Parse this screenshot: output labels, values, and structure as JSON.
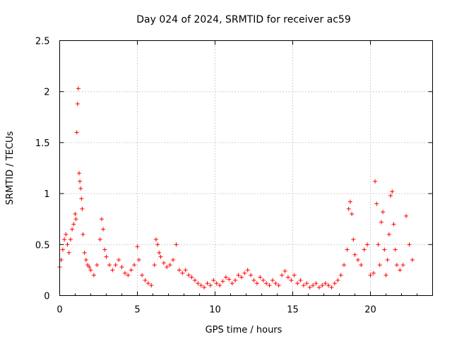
{
  "chart_data": {
    "type": "scatter",
    "title": "Day 024 of 2024, SRMTID for receiver ac59",
    "xlabel": "GPS time / hours",
    "ylabel": "SRMTID / TECUs",
    "xlim": [
      0,
      24
    ],
    "ylim": [
      0,
      2.5
    ],
    "xticks": [
      0,
      5,
      10,
      15,
      20
    ],
    "xtick_labels": [
      "0",
      "5",
      "10",
      "15",
      "20"
    ],
    "yticks": [
      0,
      0.5,
      1,
      1.5,
      2,
      2.5
    ],
    "ytick_labels": [
      "0",
      "0.5",
      "1",
      "1.5",
      "2",
      "2.5"
    ],
    "grid": true,
    "marker": "+",
    "color": "#ff0000",
    "series": [
      {
        "name": "SRMTID",
        "x": [
          0.0,
          0.1,
          0.2,
          0.3,
          0.4,
          0.5,
          0.6,
          0.7,
          0.8,
          0.9,
          1.0,
          1.05,
          1.1,
          1.15,
          1.2,
          1.25,
          1.3,
          1.35,
          1.4,
          1.45,
          1.5,
          1.6,
          1.7,
          1.8,
          1.9,
          2.0,
          2.2,
          2.4,
          2.6,
          2.7,
          2.8,
          2.9,
          3.0,
          3.2,
          3.4,
          3.6,
          3.8,
          4.0,
          4.2,
          4.4,
          4.6,
          4.8,
          5.0,
          5.1,
          5.3,
          5.5,
          5.7,
          5.9,
          6.1,
          6.2,
          6.3,
          6.4,
          6.5,
          6.7,
          6.9,
          7.1,
          7.3,
          7.5,
          7.7,
          7.9,
          8.1,
          8.3,
          8.5,
          8.7,
          8.9,
          9.1,
          9.3,
          9.5,
          9.7,
          9.9,
          10.1,
          10.3,
          10.5,
          10.7,
          10.9,
          11.1,
          11.3,
          11.5,
          11.7,
          11.9,
          12.1,
          12.3,
          12.5,
          12.7,
          12.9,
          13.1,
          13.3,
          13.5,
          13.7,
          13.9,
          14.1,
          14.3,
          14.5,
          14.7,
          14.9,
          15.1,
          15.3,
          15.5,
          15.7,
          15.9,
          16.1,
          16.3,
          16.5,
          16.7,
          16.9,
          17.1,
          17.3,
          17.5,
          17.7,
          17.9,
          18.1,
          18.3,
          18.5,
          18.6,
          18.7,
          18.8,
          18.9,
          19.0,
          19.2,
          19.4,
          19.6,
          19.8,
          20.0,
          20.2,
          20.3,
          20.4,
          20.5,
          20.6,
          20.7,
          20.8,
          20.9,
          21.0,
          21.1,
          21.2,
          21.3,
          21.4,
          21.5,
          21.6,
          21.7,
          21.9,
          22.1,
          22.3,
          22.5,
          22.7
        ],
        "y": [
          0.28,
          0.35,
          0.45,
          0.55,
          0.6,
          0.5,
          0.42,
          0.55,
          0.65,
          0.7,
          0.8,
          0.75,
          1.6,
          1.88,
          2.03,
          1.2,
          1.12,
          1.05,
          0.95,
          0.85,
          0.6,
          0.42,
          0.35,
          0.3,
          0.28,
          0.25,
          0.2,
          0.3,
          0.55,
          0.75,
          0.65,
          0.45,
          0.38,
          0.3,
          0.25,
          0.3,
          0.35,
          0.28,
          0.22,
          0.2,
          0.25,
          0.3,
          0.48,
          0.35,
          0.2,
          0.15,
          0.12,
          0.1,
          0.3,
          0.55,
          0.5,
          0.42,
          0.38,
          0.32,
          0.28,
          0.3,
          0.35,
          0.5,
          0.25,
          0.22,
          0.25,
          0.2,
          0.18,
          0.15,
          0.12,
          0.1,
          0.08,
          0.12,
          0.1,
          0.15,
          0.12,
          0.1,
          0.14,
          0.18,
          0.16,
          0.12,
          0.15,
          0.2,
          0.18,
          0.22,
          0.25,
          0.2,
          0.15,
          0.12,
          0.18,
          0.15,
          0.12,
          0.1,
          0.15,
          0.12,
          0.1,
          0.2,
          0.24,
          0.18,
          0.15,
          0.2,
          0.12,
          0.15,
          0.1,
          0.12,
          0.08,
          0.1,
          0.12,
          0.08,
          0.1,
          0.12,
          0.1,
          0.08,
          0.12,
          0.15,
          0.2,
          0.3,
          0.45,
          0.85,
          0.92,
          0.8,
          0.55,
          0.4,
          0.35,
          0.3,
          0.45,
          0.5,
          0.2,
          0.22,
          1.12,
          0.9,
          0.5,
          0.3,
          0.72,
          0.82,
          0.45,
          0.2,
          0.35,
          0.6,
          0.98,
          1.02,
          0.7,
          0.45,
          0.3,
          0.25,
          0.3,
          0.78,
          0.5,
          0.35
        ]
      }
    ]
  }
}
